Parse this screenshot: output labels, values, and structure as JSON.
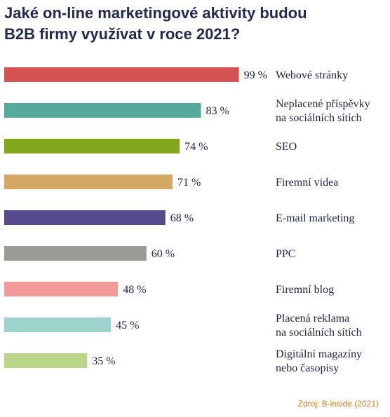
{
  "title_lines": [
    "Jaké on-line marketingové aktivity budou",
    "B2B firmy využívat v roce 2021?"
  ],
  "source": "Zdroj: B-inside (2021)",
  "chart_data": {
    "type": "bar",
    "orientation": "horizontal",
    "title": "Jaké on-line marketingové aktivity budou B2B firmy využívat v roce 2021?",
    "value_suffix": " %",
    "xlim": [
      0,
      100
    ],
    "grid": false,
    "categories": [
      [
        "Webové stránky"
      ],
      [
        "Neplacené příspěvky",
        "na sociálních sítích"
      ],
      [
        "SEO"
      ],
      [
        "Firemní videa"
      ],
      [
        "E-mail marketing"
      ],
      [
        "PPC"
      ],
      [
        "Firemní blog"
      ],
      [
        "Placená reklama",
        "na sociálních sítích"
      ],
      [
        "Digitální magazíny",
        "nebo časopisy"
      ]
    ],
    "values": [
      99,
      83,
      74,
      71,
      68,
      60,
      48,
      45,
      35
    ],
    "colors": [
      "#d55353",
      "#56aa9c",
      "#84a81d",
      "#d4a764",
      "#564a8c",
      "#9b9b95",
      "#f29a9a",
      "#9dd3cd",
      "#bcd689"
    ]
  }
}
